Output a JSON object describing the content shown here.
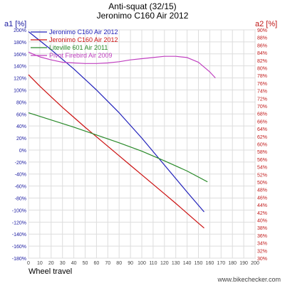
{
  "chart_data": {
    "type": "line",
    "title": "Anti-squat (32/15)",
    "subtitle": "Jeronimo C160 Air 2012",
    "xlabel": "Wheel travel",
    "ylabel_left": "a1 [%]",
    "ylabel_right": "a2 [%]",
    "watermark": "www.bikechecker.com",
    "xlim": [
      0,
      200
    ],
    "xticks": [
      0,
      10,
      20,
      30,
      40,
      50,
      60,
      70,
      80,
      90,
      100,
      110,
      120,
      130,
      140,
      150,
      160,
      170,
      180,
      190,
      200
    ],
    "ylim_left": [
      -180,
      200
    ],
    "yticks_left": [
      200,
      180,
      160,
      140,
      120,
      100,
      80,
      60,
      40,
      20,
      0,
      -20,
      -40,
      -60,
      -80,
      -100,
      -120,
      -140,
      -160,
      -180
    ],
    "ylim_right": [
      30,
      90
    ],
    "yticks_right": [
      90,
      88,
      86,
      84,
      82,
      80,
      78,
      76,
      74,
      72,
      70,
      68,
      66,
      64,
      62,
      60,
      58,
      56,
      54,
      52,
      50,
      48,
      46,
      44,
      42,
      40,
      38,
      36,
      34,
      32,
      30
    ],
    "grid": true,
    "legend_position": "top-left",
    "colors": {
      "left_axis": "#1a1aa0",
      "right_axis": "#c01818"
    },
    "series": [
      {
        "name": "Jeronimo C160 Air 2012",
        "axis": "left",
        "color": "#2222bb",
        "x": [
          0,
          20,
          40,
          60,
          80,
          100,
          120,
          140,
          155
        ],
        "y": [
          197,
          167,
          135,
          100,
          62,
          20,
          -25,
          -70,
          -103
        ]
      },
      {
        "name": "Jeronimo C160 Air 2012",
        "axis": "right",
        "color": "#cc1111",
        "x": [
          0,
          10,
          20,
          30,
          40,
          50,
          60,
          70,
          80,
          90,
          100,
          110,
          120,
          130,
          140,
          150,
          155
        ],
        "y": [
          78.2,
          75.2,
          72.4,
          69.6,
          67.0,
          64.4,
          61.9,
          59.4,
          56.9,
          54.4,
          51.9,
          49.4,
          46.9,
          44.4,
          41.8,
          39.2,
          37.9
        ]
      },
      {
        "name": "Liteville 601 Air 2011",
        "axis": "left",
        "color": "#2a8a2a",
        "x": [
          0,
          20,
          40,
          60,
          80,
          100,
          120,
          140,
          158
        ],
        "y": [
          62,
          50,
          38,
          25,
          12,
          -2,
          -18,
          -35,
          -53
        ]
      },
      {
        "name": "Pivot Firebird Air 2009",
        "axis": "left",
        "color": "#c040c0",
        "x": [
          0,
          10,
          20,
          30,
          40,
          50,
          60,
          70,
          80,
          90,
          100,
          110,
          120,
          130,
          140,
          150,
          160,
          165
        ],
        "y": [
          163,
          155,
          150,
          146,
          145,
          144,
          144,
          145,
          147,
          150,
          152,
          154,
          156,
          156,
          154,
          146,
          130,
          120
        ]
      }
    ]
  }
}
